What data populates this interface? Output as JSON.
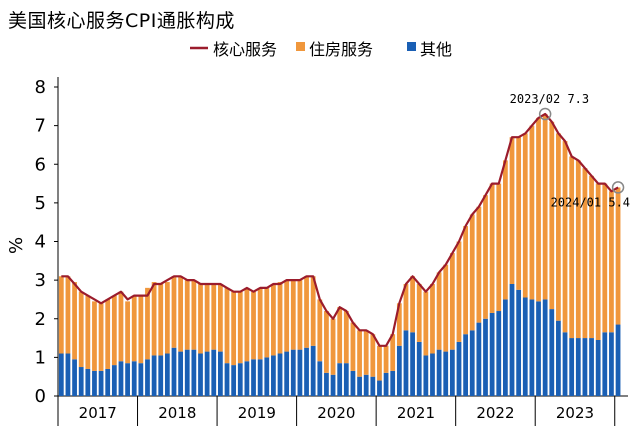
{
  "chart_data": {
    "type": "bar",
    "title": "美国核心服务CPI通胀构成",
    "ylabel": "%",
    "xlabel": "",
    "ylim": [
      0,
      8
    ],
    "yticks": [
      "0",
      "1",
      "2",
      "3",
      "4",
      "5",
      "6",
      "7",
      "8"
    ],
    "year_labels": [
      "2017",
      "2018",
      "2019",
      "2020",
      "2021",
      "2022",
      "2023"
    ],
    "legend": {
      "position": "top",
      "items": [
        {
          "name": "核心服务",
          "kind": "line",
          "color": "#9b1c2c"
        },
        {
          "name": "住房服务",
          "kind": "bar",
          "color": "#f0973c"
        },
        {
          "name": "其他",
          "kind": "bar",
          "color": "#1a5fb4"
        }
      ]
    },
    "x": [
      "2017-01",
      "2017-02",
      "2017-03",
      "2017-04",
      "2017-05",
      "2017-06",
      "2017-07",
      "2017-08",
      "2017-09",
      "2017-10",
      "2017-11",
      "2017-12",
      "2018-01",
      "2018-02",
      "2018-03",
      "2018-04",
      "2018-05",
      "2018-06",
      "2018-07",
      "2018-08",
      "2018-09",
      "2018-10",
      "2018-11",
      "2018-12",
      "2019-01",
      "2019-02",
      "2019-03",
      "2019-04",
      "2019-05",
      "2019-06",
      "2019-07",
      "2019-08",
      "2019-09",
      "2019-10",
      "2019-11",
      "2019-12",
      "2020-01",
      "2020-02",
      "2020-03",
      "2020-04",
      "2020-05",
      "2020-06",
      "2020-07",
      "2020-08",
      "2020-09",
      "2020-10",
      "2020-11",
      "2020-12",
      "2021-01",
      "2021-02",
      "2021-03",
      "2021-04",
      "2021-05",
      "2021-06",
      "2021-07",
      "2021-08",
      "2021-09",
      "2021-10",
      "2021-11",
      "2021-12",
      "2022-01",
      "2022-02",
      "2022-03",
      "2022-04",
      "2022-05",
      "2022-06",
      "2022-07",
      "2022-08",
      "2022-09",
      "2022-10",
      "2022-11",
      "2022-12",
      "2023-01",
      "2023-02",
      "2023-03",
      "2023-04",
      "2023-05",
      "2023-06",
      "2023-07",
      "2023-08",
      "2023-09",
      "2023-10",
      "2023-11",
      "2023-12",
      "2024-01"
    ],
    "series": [
      {
        "name": "核心服务",
        "type": "line",
        "color": "#9b1c2c",
        "values": [
          3.1,
          3.1,
          2.9,
          2.7,
          2.6,
          2.5,
          2.4,
          2.5,
          2.6,
          2.7,
          2.5,
          2.6,
          2.6,
          2.6,
          2.9,
          2.9,
          3.0,
          3.1,
          3.1,
          3.0,
          3.0,
          2.9,
          2.9,
          2.9,
          2.9,
          2.8,
          2.7,
          2.7,
          2.8,
          2.7,
          2.8,
          2.8,
          2.9,
          2.9,
          3.0,
          3.0,
          3.0,
          3.1,
          3.1,
          2.5,
          2.2,
          2.0,
          2.3,
          2.2,
          1.9,
          1.7,
          1.7,
          1.6,
          1.3,
          1.3,
          1.6,
          2.4,
          2.9,
          3.1,
          2.9,
          2.7,
          2.9,
          3.2,
          3.4,
          3.7,
          4.0,
          4.4,
          4.7,
          4.9,
          5.2,
          5.5,
          5.5,
          6.1,
          6.7,
          6.7,
          6.8,
          7.0,
          7.2,
          7.3,
          7.1,
          6.8,
          6.6,
          6.2,
          6.1,
          5.9,
          5.7,
          5.5,
          5.5,
          5.3,
          5.4
        ]
      },
      {
        "name": "住房服务",
        "type": "bar",
        "color": "#f0973c",
        "values": [
          2.0,
          2.0,
          2.0,
          1.95,
          1.9,
          1.8,
          1.75,
          1.8,
          1.8,
          1.8,
          1.6,
          1.7,
          1.75,
          1.85,
          1.9,
          1.85,
          1.85,
          1.85,
          1.95,
          1.8,
          1.8,
          1.8,
          1.75,
          1.7,
          1.75,
          1.95,
          1.9,
          1.85,
          1.9,
          1.75,
          1.85,
          1.8,
          1.85,
          1.85,
          1.85,
          1.8,
          1.8,
          1.85,
          1.8,
          1.6,
          1.6,
          1.45,
          1.45,
          1.35,
          1.25,
          1.2,
          1.15,
          1.1,
          0.9,
          0.7,
          0.95,
          1.1,
          1.2,
          1.45,
          1.5,
          1.65,
          1.8,
          2.0,
          2.25,
          2.5,
          2.6,
          2.8,
          3.0,
          3.0,
          3.2,
          3.35,
          3.3,
          3.6,
          3.8,
          3.95,
          4.25,
          4.5,
          4.75,
          4.8,
          4.85,
          4.85,
          4.95,
          4.7,
          4.6,
          4.4,
          4.2,
          4.05,
          3.85,
          3.65,
          3.55
        ]
      },
      {
        "name": "其他",
        "type": "bar",
        "color": "#1a5fb4",
        "values": [
          1.1,
          1.1,
          0.95,
          0.75,
          0.7,
          0.65,
          0.65,
          0.7,
          0.8,
          0.9,
          0.85,
          0.9,
          0.85,
          0.95,
          1.05,
          1.05,
          1.1,
          1.25,
          1.15,
          1.2,
          1.2,
          1.1,
          1.15,
          1.2,
          1.15,
          0.85,
          0.8,
          0.85,
          0.9,
          0.95,
          0.95,
          1.0,
          1.05,
          1.1,
          1.15,
          1.2,
          1.2,
          1.25,
          1.3,
          0.9,
          0.6,
          0.55,
          0.85,
          0.85,
          0.65,
          0.5,
          0.55,
          0.5,
          0.4,
          0.6,
          0.65,
          1.3,
          1.7,
          1.65,
          1.4,
          1.05,
          1.1,
          1.2,
          1.15,
          1.2,
          1.4,
          1.6,
          1.7,
          1.9,
          2.0,
          2.15,
          2.2,
          2.5,
          2.9,
          2.75,
          2.55,
          2.5,
          2.45,
          2.5,
          2.25,
          1.95,
          1.65,
          1.5,
          1.5,
          1.5,
          1.5,
          1.45,
          1.65,
          1.65,
          1.85
        ]
      }
    ],
    "annotations": [
      {
        "text": "2023/02  7.3",
        "x": "2023-02",
        "y": 7.3
      },
      {
        "text": "2024/01  5.4",
        "x": "2024-01",
        "y": 5.4
      }
    ]
  }
}
